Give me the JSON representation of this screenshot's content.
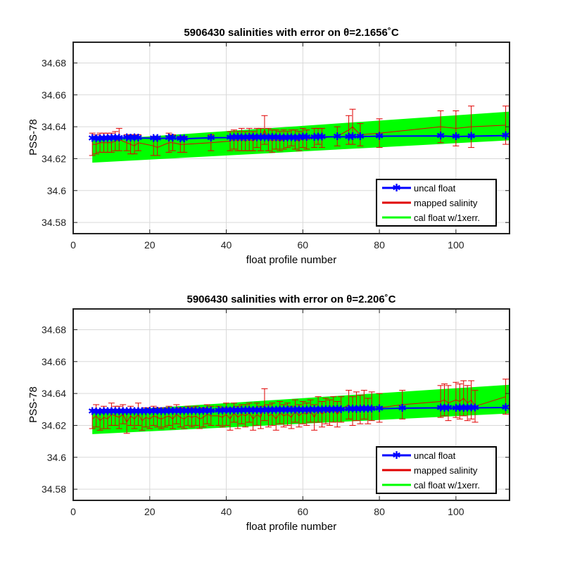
{
  "chart_data": [
    {
      "type": "scatter",
      "title": "5906430 salinities with error on θ=2.1656˚C",
      "xlabel": "float profile number",
      "ylabel": "PSS-78",
      "xlim": [
        0,
        114
      ],
      "ylim": [
        34.573,
        34.693
      ],
      "xticks": [
        0,
        20,
        40,
        60,
        80,
        100
      ],
      "yticks": [
        34.58,
        34.6,
        34.62,
        34.64,
        34.66,
        34.68
      ],
      "ytick_labels": [
        "34.58",
        "34.6",
        "34.62",
        "34.64",
        "34.66",
        "34.68"
      ],
      "grid": true,
      "legend_position": "bottom-right",
      "legend": [
        "uncal float",
        "mapped salinity",
        "cal float w/1xerr."
      ],
      "colors": {
        "uncal": "#0000ff",
        "mapped": "#e00000",
        "cal": "#00ff00"
      },
      "band": {
        "x": [
          5,
          114
        ],
        "upper": [
          34.6315,
          34.6495
        ],
        "lower": [
          34.6175,
          34.6315
        ]
      },
      "uncal_float": {
        "x": [
          5,
          6,
          7,
          8,
          9,
          10,
          11,
          12,
          14,
          15,
          16,
          17,
          21,
          22,
          25,
          26,
          28,
          29,
          36,
          41,
          42,
          43,
          44,
          45,
          46,
          47,
          48,
          49,
          50,
          51,
          52,
          53,
          54,
          55,
          56,
          57,
          58,
          59,
          60,
          61,
          63,
          64,
          65,
          69,
          72,
          73,
          75,
          80,
          96,
          100,
          104,
          113
        ],
        "y": [
          34.6327,
          34.6325,
          34.6326,
          34.6327,
          34.6328,
          34.6329,
          34.633,
          34.6331,
          34.6333,
          34.6331,
          34.6332,
          34.633,
          34.6328,
          34.6327,
          34.6329,
          34.633,
          34.6326,
          34.6325,
          34.6331,
          34.6332,
          34.6333,
          34.6334,
          34.6332,
          34.6333,
          34.6334,
          34.6335,
          34.6333,
          34.6334,
          34.6332,
          34.6333,
          34.6334,
          34.6333,
          34.6332,
          34.6331,
          34.6333,
          34.6332,
          34.6331,
          34.6333,
          34.6336,
          34.6334,
          34.6335,
          34.6336,
          34.6336,
          34.6338,
          34.6337,
          34.6338,
          34.6339,
          34.6341,
          34.6343,
          34.6339,
          34.6341,
          34.6345
        ]
      },
      "mapped_salinity": {
        "x": [
          5,
          6,
          7,
          8,
          9,
          10,
          11,
          12,
          14,
          15,
          16,
          17,
          21,
          22,
          25,
          26,
          28,
          29,
          36,
          41,
          42,
          43,
          44,
          45,
          46,
          47,
          48,
          49,
          50,
          51,
          52,
          53,
          54,
          55,
          56,
          57,
          58,
          59,
          60,
          61,
          63,
          64,
          65,
          69,
          72,
          73,
          75,
          80,
          96,
          100,
          104,
          113
        ],
        "y": [
          34.629,
          34.629,
          34.63,
          34.63,
          34.63,
          34.63,
          34.631,
          34.632,
          34.63,
          34.629,
          34.628,
          34.63,
          34.628,
          34.627,
          34.63,
          34.63,
          34.629,
          34.629,
          34.63,
          34.631,
          34.632,
          34.631,
          34.632,
          34.631,
          34.632,
          34.631,
          34.633,
          34.632,
          34.638,
          34.632,
          34.631,
          34.632,
          34.631,
          34.632,
          34.632,
          34.633,
          34.632,
          34.631,
          34.633,
          34.632,
          34.633,
          34.634,
          34.633,
          34.634,
          34.638,
          34.64,
          34.635,
          34.636,
          34.64,
          34.639,
          34.64,
          34.641
        ],
        "err": [
          0.007,
          0.006,
          0.006,
          0.006,
          0.006,
          0.006,
          0.006,
          0.007,
          0.005,
          0.006,
          0.005,
          0.005,
          0.006,
          0.005,
          0.006,
          0.005,
          0.005,
          0.005,
          0.005,
          0.006,
          0.006,
          0.006,
          0.007,
          0.006,
          0.007,
          0.006,
          0.006,
          0.007,
          0.009,
          0.007,
          0.007,
          0.006,
          0.006,
          0.006,
          0.005,
          0.005,
          0.006,
          0.006,
          0.006,
          0.006,
          0.006,
          0.005,
          0.006,
          0.006,
          0.009,
          0.011,
          0.007,
          0.009,
          0.01,
          0.011,
          0.013,
          0.012
        ]
      }
    },
    {
      "type": "scatter",
      "title": "5906430 salinities with error on θ=2.206˚C",
      "xlabel": "float profile number",
      "ylabel": "PSS-78",
      "xlim": [
        0,
        114
      ],
      "ylim": [
        34.573,
        34.693
      ],
      "xticks": [
        0,
        20,
        40,
        60,
        80,
        100
      ],
      "yticks": [
        34.58,
        34.6,
        34.62,
        34.64,
        34.66,
        34.68
      ],
      "ytick_labels": [
        "34.58",
        "34.6",
        "34.62",
        "34.64",
        "34.66",
        "34.68"
      ],
      "grid": true,
      "legend_position": "bottom-right",
      "legend": [
        "uncal float",
        "mapped salinity",
        "cal float w/1xerr."
      ],
      "colors": {
        "uncal": "#0000ff",
        "mapped": "#e00000",
        "cal": "#00ff00"
      },
      "band": {
        "x": [
          5,
          114
        ],
        "upper": [
          34.6285,
          34.6455
        ],
        "lower": [
          34.6145,
          34.6275
        ]
      },
      "uncal_float": {
        "x": [
          5,
          6,
          7,
          8,
          9,
          10,
          11,
          12,
          13,
          14,
          15,
          16,
          17,
          18,
          19,
          20,
          21,
          22,
          23,
          24,
          25,
          26,
          27,
          28,
          29,
          30,
          31,
          32,
          33,
          34,
          35,
          36,
          38,
          39,
          40,
          41,
          42,
          43,
          44,
          45,
          46,
          47,
          48,
          49,
          50,
          51,
          52,
          53,
          54,
          55,
          56,
          57,
          58,
          59,
          60,
          61,
          62,
          63,
          64,
          65,
          66,
          67,
          68,
          69,
          70,
          72,
          73,
          74,
          75,
          76,
          77,
          78,
          80,
          86,
          96,
          97,
          98,
          100,
          101,
          102,
          103,
          104,
          105,
          113
        ],
        "y": [
          34.6287,
          34.6285,
          34.6286,
          34.6287,
          34.6288,
          34.6288,
          34.6289,
          34.6289,
          34.6288,
          34.6289,
          34.6288,
          34.6289,
          34.6289,
          34.6288,
          34.6289,
          34.629,
          34.6289,
          34.629,
          34.6289,
          34.6289,
          34.629,
          34.629,
          34.6291,
          34.629,
          34.629,
          34.6291,
          34.6291,
          34.629,
          34.6291,
          34.6291,
          34.6292,
          34.6291,
          34.6293,
          34.6293,
          34.6294,
          34.6293,
          34.6294,
          34.6293,
          34.6294,
          34.6294,
          34.6295,
          34.6294,
          34.6295,
          34.6294,
          34.6295,
          34.6296,
          34.6295,
          34.6296,
          34.6296,
          34.6297,
          34.6296,
          34.6297,
          34.6297,
          34.6298,
          34.6297,
          34.6298,
          34.6298,
          34.6299,
          34.6298,
          34.6299,
          34.6299,
          34.63,
          34.63,
          34.6301,
          34.63,
          34.6302,
          34.6303,
          34.6302,
          34.6303,
          34.6304,
          34.6303,
          34.6304,
          34.6305,
          34.6308,
          34.631,
          34.6309,
          34.631,
          34.6309,
          34.631,
          34.6309,
          34.631,
          34.6311,
          34.631,
          34.6312
        ]
      },
      "mapped_salinity": {
        "x": [
          5,
          6,
          7,
          8,
          9,
          10,
          11,
          12,
          13,
          14,
          15,
          16,
          17,
          18,
          19,
          20,
          21,
          22,
          23,
          24,
          25,
          26,
          27,
          28,
          29,
          30,
          31,
          32,
          33,
          34,
          35,
          36,
          38,
          39,
          40,
          41,
          42,
          43,
          44,
          45,
          46,
          47,
          48,
          49,
          50,
          51,
          52,
          53,
          54,
          55,
          56,
          57,
          58,
          59,
          60,
          61,
          62,
          63,
          64,
          65,
          66,
          67,
          68,
          69,
          70,
          72,
          73,
          74,
          75,
          76,
          77,
          78,
          80,
          86,
          96,
          97,
          98,
          100,
          101,
          102,
          103,
          104,
          105,
          113
        ],
        "y": [
          34.624,
          34.626,
          34.623,
          34.625,
          34.624,
          34.627,
          34.626,
          34.625,
          34.627,
          34.622,
          34.626,
          34.624,
          34.627,
          34.623,
          34.625,
          34.624,
          34.626,
          34.625,
          34.624,
          34.625,
          34.626,
          34.624,
          34.627,
          34.625,
          34.624,
          34.626,
          34.625,
          34.626,
          34.624,
          34.625,
          34.627,
          34.626,
          34.626,
          34.625,
          34.627,
          34.624,
          34.628,
          34.625,
          34.627,
          34.626,
          34.628,
          34.624,
          34.627,
          34.625,
          34.633,
          34.626,
          34.627,
          34.624,
          34.628,
          34.626,
          34.627,
          34.625,
          34.629,
          34.626,
          34.628,
          34.627,
          34.629,
          34.625,
          34.63,
          34.627,
          34.629,
          34.628,
          34.63,
          34.627,
          34.63,
          34.633,
          34.629,
          34.632,
          34.63,
          34.633,
          34.629,
          34.632,
          34.631,
          34.633,
          34.635,
          34.636,
          34.634,
          34.636,
          34.635,
          34.637,
          34.634,
          34.636,
          34.632,
          34.638
        ],
        "err": [
          0.006,
          0.007,
          0.006,
          0.007,
          0.006,
          0.007,
          0.006,
          0.007,
          0.006,
          0.007,
          0.006,
          0.006,
          0.007,
          0.006,
          0.006,
          0.006,
          0.006,
          0.006,
          0.006,
          0.006,
          0.006,
          0.006,
          0.006,
          0.006,
          0.006,
          0.006,
          0.006,
          0.006,
          0.006,
          0.006,
          0.006,
          0.006,
          0.006,
          0.006,
          0.007,
          0.007,
          0.006,
          0.007,
          0.006,
          0.007,
          0.006,
          0.007,
          0.007,
          0.007,
          0.01,
          0.007,
          0.007,
          0.007,
          0.007,
          0.007,
          0.007,
          0.007,
          0.007,
          0.007,
          0.007,
          0.007,
          0.007,
          0.008,
          0.008,
          0.008,
          0.008,
          0.008,
          0.008,
          0.008,
          0.008,
          0.009,
          0.009,
          0.009,
          0.009,
          0.009,
          0.008,
          0.009,
          0.009,
          0.009,
          0.01,
          0.01,
          0.011,
          0.011,
          0.011,
          0.011,
          0.011,
          0.012,
          0.01,
          0.011
        ]
      }
    }
  ]
}
